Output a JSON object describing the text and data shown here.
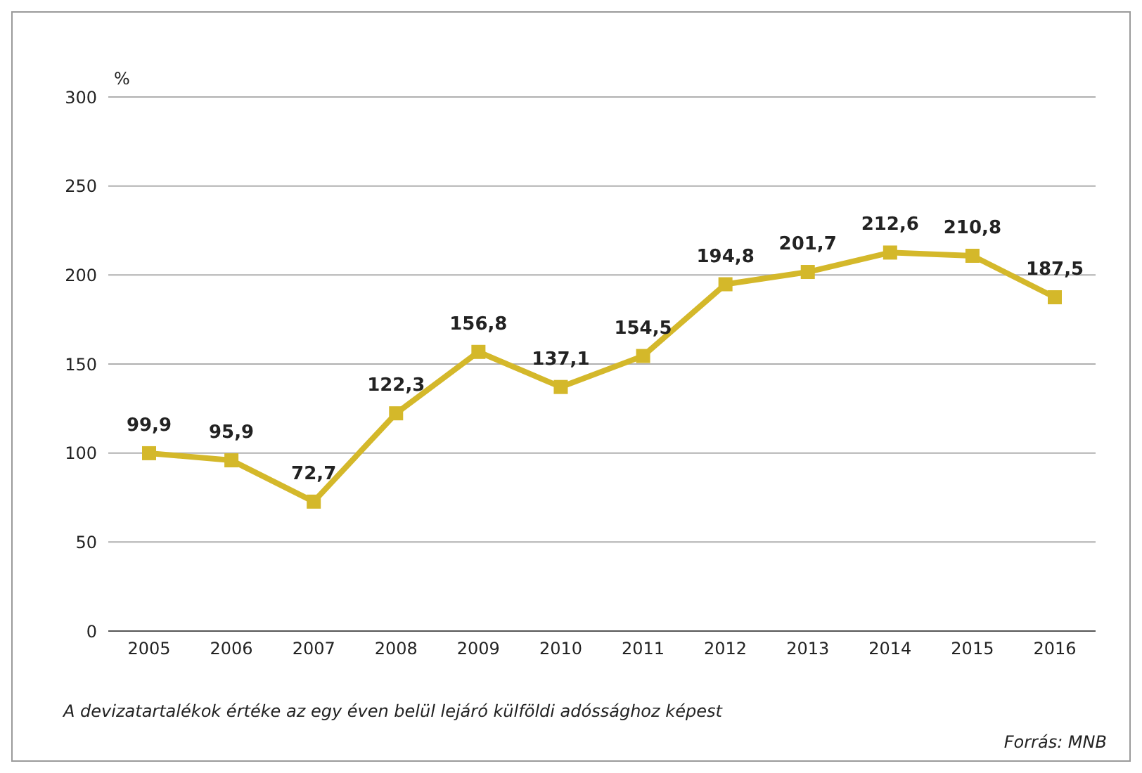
{
  "chart_data": {
    "type": "line",
    "ylabel": "%",
    "categories": [
      "2005",
      "2006",
      "2007",
      "2008",
      "2009",
      "2010",
      "2011",
      "2012",
      "2013",
      "2014",
      "2015",
      "2016"
    ],
    "series": [
      {
        "color": "#d4b82a",
        "values": [
          99.9,
          95.9,
          72.7,
          122.3,
          156.8,
          137.1,
          154.5,
          194.8,
          201.7,
          212.6,
          210.8,
          187.5
        ],
        "value_labels": [
          "99,9",
          "95,9",
          "72,7",
          "122,3",
          "156,8",
          "137,1",
          "154,5",
          "194,8",
          "201,7",
          "212,6",
          "210,8",
          "187,5"
        ]
      }
    ],
    "ylim": [
      0,
      300
    ],
    "yticks": [
      0,
      50,
      100,
      150,
      200,
      250,
      300
    ],
    "grid": "y",
    "marker": "square",
    "line_style": "solid",
    "annotations": [
      "A devizatartalékok értéke az egy éven belül lejáró külföldi adóssághoz képest",
      "Forrás: MNB"
    ]
  }
}
